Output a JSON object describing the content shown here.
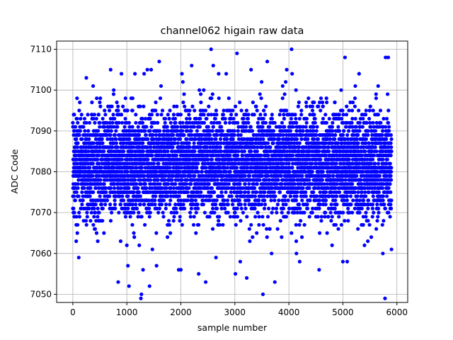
{
  "chart_data": {
    "type": "scatter",
    "title": "channel062 higain raw data",
    "xlabel": "sample number",
    "ylabel": "ADC Code",
    "xlim": [
      -300,
      6200
    ],
    "ylim": [
      7048,
      7112
    ],
    "xticks": [
      0,
      1000,
      2000,
      3000,
      4000,
      5000,
      6000
    ],
    "yticks": [
      7050,
      7060,
      7070,
      7080,
      7090,
      7100,
      7110
    ],
    "grid": true,
    "marker_color": "#0000ff",
    "n_samples": 5900,
    "series": [
      {
        "points": [
          [
            110,
            7059
          ],
          [
            250,
            7103
          ],
          [
            700,
            7105
          ],
          [
            840,
            7053
          ],
          [
            900,
            7104
          ],
          [
            1000,
            7062
          ],
          [
            1020,
            7057
          ],
          [
            1040,
            7052
          ],
          [
            1150,
            7104
          ],
          [
            1230,
            7062
          ],
          [
            1260,
            7049
          ],
          [
            1270,
            7050
          ],
          [
            1300,
            7056
          ],
          [
            1320,
            7104
          ],
          [
            1380,
            7105
          ],
          [
            1420,
            7052
          ],
          [
            1450,
            7105
          ],
          [
            1550,
            7057
          ],
          [
            1600,
            7107
          ],
          [
            1960,
            7056
          ],
          [
            2000,
            7056
          ],
          [
            2020,
            7104
          ],
          [
            2200,
            7106
          ],
          [
            2330,
            7055
          ],
          [
            2460,
            7053
          ],
          [
            2560,
            7110
          ],
          [
            2600,
            7106
          ],
          [
            2650,
            7059
          ],
          [
            2700,
            7104
          ],
          [
            2840,
            7104
          ],
          [
            3010,
            7055
          ],
          [
            3040,
            7109
          ],
          [
            3100,
            7058
          ],
          [
            3220,
            7054
          ],
          [
            3300,
            7105
          ],
          [
            3520,
            7050
          ],
          [
            3600,
            7107
          ],
          [
            3680,
            7060
          ],
          [
            3740,
            7053
          ],
          [
            3960,
            7105
          ],
          [
            4050,
            7110
          ],
          [
            4060,
            7104
          ],
          [
            4140,
            7060
          ],
          [
            4200,
            7058
          ],
          [
            4560,
            7056
          ],
          [
            4800,
            7062
          ],
          [
            5000,
            7058
          ],
          [
            5040,
            7108
          ],
          [
            5080,
            7058
          ],
          [
            5300,
            7104
          ],
          [
            5400,
            7062
          ],
          [
            5740,
            7060
          ],
          [
            5780,
            7049
          ],
          [
            5790,
            7108
          ],
          [
            5840,
            7108
          ],
          [
            5900,
            7061
          ]
        ],
        "bulk": {
          "x_range": [
            0,
            5900
          ],
          "y_center": 7082,
          "y_spread": 6.5,
          "y_min": 7058,
          "y_max": 7103
        }
      }
    ]
  }
}
